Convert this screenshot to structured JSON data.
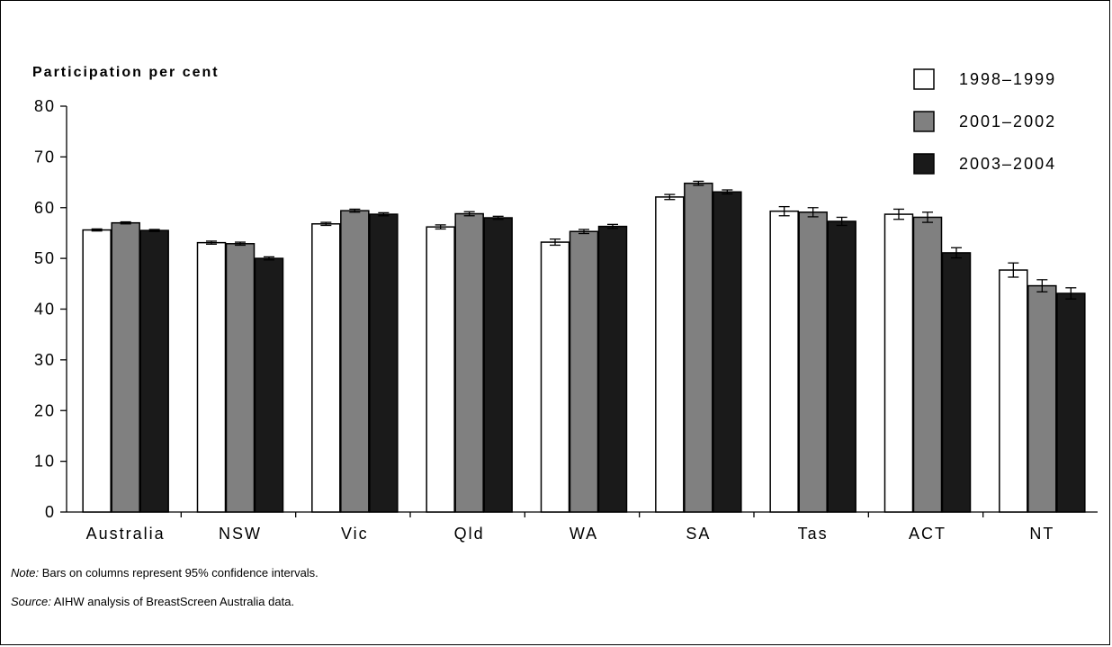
{
  "chart_data": {
    "type": "bar",
    "ylabel": "Participation per cent",
    "xlabel": "",
    "ylim": [
      0,
      80
    ],
    "yticks": [
      0,
      10,
      20,
      30,
      40,
      50,
      60,
      70,
      80
    ],
    "grid": false,
    "legend_position": "top-right",
    "categories": [
      "Australia",
      "NSW",
      "Vic",
      "Qld",
      "WA",
      "SA",
      "Tas",
      "ACT",
      "NT"
    ],
    "series": [
      {
        "name": "1998–1999",
        "color": "#ffffff",
        "values": [
          55.6,
          53.1,
          56.8,
          56.2,
          53.2,
          62.1,
          59.3,
          58.7,
          47.7
        ],
        "ci": [
          [
            55.4,
            55.8
          ],
          [
            52.8,
            53.4
          ],
          [
            56.5,
            57.1
          ],
          [
            55.8,
            56.6
          ],
          [
            52.6,
            53.8
          ],
          [
            61.6,
            62.6
          ],
          [
            58.4,
            60.2
          ],
          [
            57.7,
            59.7
          ],
          [
            46.3,
            49.1
          ]
        ]
      },
      {
        "name": "2001–2002",
        "color": "#808080",
        "values": [
          57.0,
          52.9,
          59.4,
          58.8,
          55.3,
          64.8,
          59.1,
          58.1,
          44.6
        ],
        "ci": [
          [
            56.8,
            57.2
          ],
          [
            52.6,
            53.2
          ],
          [
            59.1,
            59.7
          ],
          [
            58.4,
            59.2
          ],
          [
            54.9,
            55.7
          ],
          [
            64.4,
            65.2
          ],
          [
            58.2,
            60.0
          ],
          [
            57.1,
            59.1
          ],
          [
            43.4,
            45.8
          ]
        ]
      },
      {
        "name": "2003–2004",
        "color": "#1a1a1a",
        "values": [
          55.5,
          50.0,
          58.7,
          58.0,
          56.3,
          63.1,
          57.3,
          51.1,
          43.1
        ],
        "ci": [
          [
            55.3,
            55.7
          ],
          [
            49.7,
            50.3
          ],
          [
            58.4,
            59.0
          ],
          [
            57.7,
            58.3
          ],
          [
            55.9,
            56.7
          ],
          [
            62.7,
            63.5
          ],
          [
            56.5,
            58.1
          ],
          [
            50.1,
            52.1
          ],
          [
            42.0,
            44.2
          ]
        ]
      }
    ]
  },
  "notes": {
    "note_label": "Note:",
    "note_text": " Bars on columns represent 95% confidence intervals.",
    "source_label": "Source:",
    "source_text": " AIHW analysis of BreastScreen Australia data."
  }
}
